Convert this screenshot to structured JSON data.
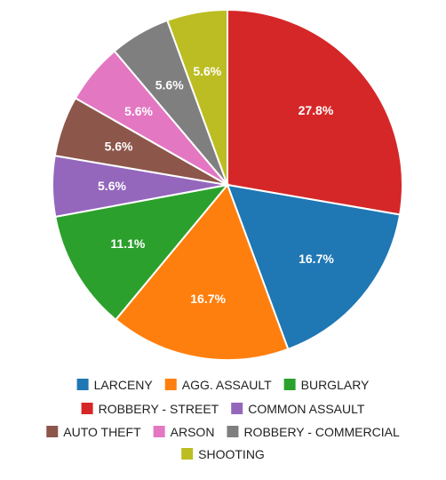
{
  "chart_data": {
    "type": "pie",
    "title": "",
    "legend_position": "bottom",
    "start_angle": "top, clockwise",
    "slices": [
      {
        "name": "ROBBERY - STREET",
        "value": 27.8,
        "label": "27.8%",
        "color": "#d62728"
      },
      {
        "name": "LARCENY",
        "value": 16.7,
        "label": "16.7%",
        "color": "#1f77b4"
      },
      {
        "name": "AGG. ASSAULT",
        "value": 16.7,
        "label": "16.7%",
        "color": "#ff7f0e"
      },
      {
        "name": "BURGLARY",
        "value": 11.1,
        "label": "11.1%",
        "color": "#2ca02c"
      },
      {
        "name": "COMMON ASSAULT",
        "value": 5.6,
        "label": "5.6%",
        "color": "#9467bd"
      },
      {
        "name": "AUTO THEFT",
        "value": 5.6,
        "label": "5.6%",
        "color": "#8c564b"
      },
      {
        "name": "ARSON",
        "value": 5.6,
        "label": "5.6%",
        "color": "#e377c2"
      },
      {
        "name": "ROBBERY - COMMERCIAL",
        "value": 5.6,
        "label": "5.6%",
        "color": "#7f7f7f"
      },
      {
        "name": "SHOOTING",
        "value": 5.6,
        "label": "5.6%",
        "color": "#bcbd22"
      }
    ],
    "legend": [
      [
        "LARCENY",
        "AGG. ASSAULT",
        "BURGLARY"
      ],
      [
        "ROBBERY - STREET",
        "COMMON ASSAULT"
      ],
      [
        "AUTO THEFT",
        "ARSON",
        "ROBBERY - COMMERCIAL"
      ],
      [
        "SHOOTING"
      ]
    ]
  }
}
